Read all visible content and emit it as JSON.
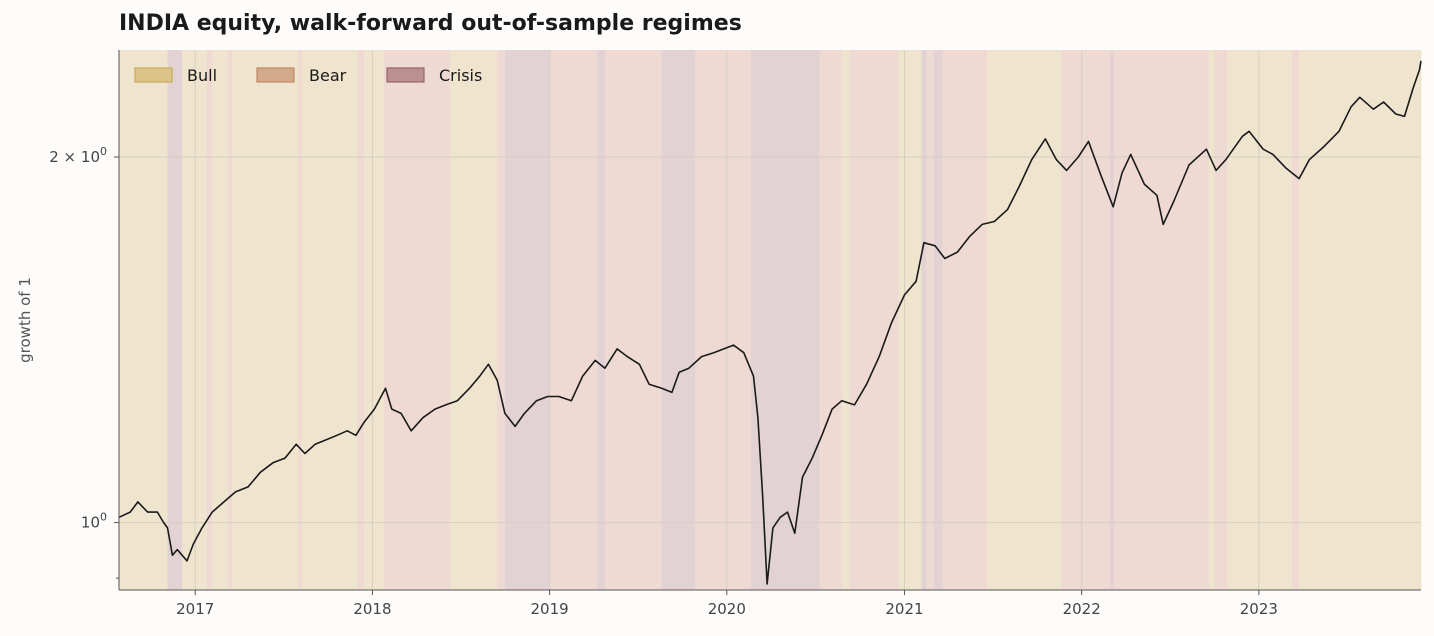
{
  "chart_data": {
    "type": "line",
    "title": "INDIA equity, walk-forward out-of-sample regimes",
    "ylabel": "growth of 1",
    "xlabel": "",
    "y_scale": "log",
    "xlim": [
      "2016-07-28",
      "2023-12-01"
    ],
    "ylim": [
      0.88,
      2.45
    ],
    "x_ticks": [
      "2017-01-01",
      "2018-01-01",
      "2019-01-01",
      "2020-01-01",
      "2021-01-01",
      "2022-01-01",
      "2023-01-01"
    ],
    "x_tick_labels": [
      "2017",
      "2018",
      "2019",
      "2020",
      "2021",
      "2022",
      "2023"
    ],
    "y_ticks": [
      {
        "value": 1.0,
        "base": "10",
        "exp": "0"
      },
      {
        "value": 2.0,
        "base": "2 × 10",
        "exp": "0"
      }
    ],
    "y_minor_ticks": [
      0.9
    ],
    "legend": {
      "placement": "top-left",
      "entries": [
        {
          "name": "Bull",
          "fill": "#dcc48a",
          "stroke": "#c9a95a"
        },
        {
          "name": "Bear",
          "fill": "#d2a98a",
          "stroke": "#c08a66"
        },
        {
          "name": "Crisis",
          "fill": "#b9918f",
          "stroke": "#9a6565"
        }
      ]
    },
    "regime_colors": {
      "Bull": "#efe5cf",
      "Bear": "#eedad3",
      "Crisis": "#e2d2d3"
    },
    "regimes": [
      {
        "start": "2016-07-28",
        "end": "2016-11-05",
        "regime": "Bull"
      },
      {
        "start": "2016-11-05",
        "end": "2016-12-05",
        "regime": "Crisis"
      },
      {
        "start": "2016-12-05",
        "end": "2017-01-01",
        "regime": "Bull"
      },
      {
        "start": "2017-01-01",
        "end": "2017-01-25",
        "regime": "Bull"
      },
      {
        "start": "2017-01-25",
        "end": "2017-02-05",
        "regime": "Bear"
      },
      {
        "start": "2017-02-05",
        "end": "2017-03-10",
        "regime": "Bull"
      },
      {
        "start": "2017-03-10",
        "end": "2017-03-18",
        "regime": "Bear"
      },
      {
        "start": "2017-03-18",
        "end": "2017-08-01",
        "regime": "Bull"
      },
      {
        "start": "2017-08-01",
        "end": "2017-08-08",
        "regime": "Bear"
      },
      {
        "start": "2017-08-08",
        "end": "2017-12-01",
        "regime": "Bull"
      },
      {
        "start": "2017-12-01",
        "end": "2017-12-15",
        "regime": "Bear"
      },
      {
        "start": "2017-12-15",
        "end": "2018-01-25",
        "regime": "Bull"
      },
      {
        "start": "2018-01-25",
        "end": "2018-06-10",
        "regime": "Bear"
      },
      {
        "start": "2018-06-10",
        "end": "2018-07-01",
        "regime": "Bull"
      },
      {
        "start": "2018-07-01",
        "end": "2018-09-15",
        "regime": "Bull"
      },
      {
        "start": "2018-09-15",
        "end": "2018-10-01",
        "regime": "Bear"
      },
      {
        "start": "2018-10-01",
        "end": "2019-01-01",
        "regime": "Crisis"
      },
      {
        "start": "2019-01-01",
        "end": "2019-04-10",
        "regime": "Bear"
      },
      {
        "start": "2019-04-10",
        "end": "2019-04-25",
        "regime": "Crisis"
      },
      {
        "start": "2019-04-25",
        "end": "2019-08-20",
        "regime": "Bear"
      },
      {
        "start": "2019-08-20",
        "end": "2019-10-28",
        "regime": "Crisis"
      },
      {
        "start": "2019-10-28",
        "end": "2020-02-20",
        "regime": "Bear"
      },
      {
        "start": "2020-02-20",
        "end": "2020-07-10",
        "regime": "Crisis"
      },
      {
        "start": "2020-07-10",
        "end": "2020-08-25",
        "regime": "Bear"
      },
      {
        "start": "2020-08-25",
        "end": "2020-09-10",
        "regime": "Bull"
      },
      {
        "start": "2020-09-10",
        "end": "2020-12-20",
        "regime": "Bear"
      },
      {
        "start": "2020-12-20",
        "end": "2021-02-05",
        "regime": "Bull"
      },
      {
        "start": "2021-02-05",
        "end": "2021-02-15",
        "regime": "Crisis"
      },
      {
        "start": "2021-02-15",
        "end": "2021-03-03",
        "regime": "Bear"
      },
      {
        "start": "2021-03-03",
        "end": "2021-03-20",
        "regime": "Crisis"
      },
      {
        "start": "2021-03-20",
        "end": "2021-06-20",
        "regime": "Bear"
      },
      {
        "start": "2021-06-20",
        "end": "2021-11-20",
        "regime": "Bull"
      },
      {
        "start": "2021-11-20",
        "end": "2022-03-01",
        "regime": "Bear"
      },
      {
        "start": "2022-03-01",
        "end": "2022-03-08",
        "regime": "Crisis"
      },
      {
        "start": "2022-03-08",
        "end": "2022-09-20",
        "regime": "Bear"
      },
      {
        "start": "2022-09-20",
        "end": "2022-10-01",
        "regime": "Bull"
      },
      {
        "start": "2022-10-01",
        "end": "2022-10-28",
        "regime": "Bear"
      },
      {
        "start": "2022-10-28",
        "end": "2023-03-10",
        "regime": "Bull"
      },
      {
        "start": "2023-03-10",
        "end": "2023-03-25",
        "regime": "Bear"
      },
      {
        "start": "2023-03-25",
        "end": "2023-12-01",
        "regime": "Bull"
      }
    ],
    "series": [
      {
        "color": "#1a1a1a",
        "points": [
          [
            "2016-07-28",
            1.01
          ],
          [
            "2016-08-20",
            1.02
          ],
          [
            "2016-09-05",
            1.04
          ],
          [
            "2016-09-25",
            1.02
          ],
          [
            "2016-10-15",
            1.02
          ],
          [
            "2016-10-28",
            1.0
          ],
          [
            "2016-11-05",
            0.99
          ],
          [
            "2016-11-15",
            0.94
          ],
          [
            "2016-11-25",
            0.95
          ],
          [
            "2016-12-05",
            0.94
          ],
          [
            "2016-12-15",
            0.93
          ],
          [
            "2016-12-28",
            0.96
          ],
          [
            "2017-01-15",
            0.99
          ],
          [
            "2017-02-05",
            1.02
          ],
          [
            "2017-03-01",
            1.04
          ],
          [
            "2017-03-25",
            1.06
          ],
          [
            "2017-04-20",
            1.07
          ],
          [
            "2017-05-15",
            1.1
          ],
          [
            "2017-06-10",
            1.12
          ],
          [
            "2017-07-05",
            1.13
          ],
          [
            "2017-07-28",
            1.16
          ],
          [
            "2017-08-15",
            1.14
          ],
          [
            "2017-09-05",
            1.16
          ],
          [
            "2017-09-28",
            1.17
          ],
          [
            "2017-10-20",
            1.18
          ],
          [
            "2017-11-10",
            1.19
          ],
          [
            "2017-11-28",
            1.18
          ],
          [
            "2017-12-15",
            1.21
          ],
          [
            "2018-01-05",
            1.24
          ],
          [
            "2018-01-28",
            1.29
          ],
          [
            "2018-02-10",
            1.24
          ],
          [
            "2018-03-01",
            1.23
          ],
          [
            "2018-03-22",
            1.19
          ],
          [
            "2018-04-15",
            1.22
          ],
          [
            "2018-05-10",
            1.24
          ],
          [
            "2018-06-01",
            1.25
          ],
          [
            "2018-06-25",
            1.26
          ],
          [
            "2018-07-20",
            1.29
          ],
          [
            "2018-08-10",
            1.32
          ],
          [
            "2018-08-28",
            1.35
          ],
          [
            "2018-09-15",
            1.31
          ],
          [
            "2018-10-01",
            1.23
          ],
          [
            "2018-10-22",
            1.2
          ],
          [
            "2018-11-10",
            1.23
          ],
          [
            "2018-12-05",
            1.26
          ],
          [
            "2018-12-28",
            1.27
          ],
          [
            "2019-01-20",
            1.27
          ],
          [
            "2019-02-15",
            1.26
          ],
          [
            "2019-03-10",
            1.32
          ],
          [
            "2019-04-05",
            1.36
          ],
          [
            "2019-04-25",
            1.34
          ],
          [
            "2019-05-20",
            1.39
          ],
          [
            "2019-06-10",
            1.37
          ],
          [
            "2019-07-05",
            1.35
          ],
          [
            "2019-07-25",
            1.3
          ],
          [
            "2019-08-20",
            1.29
          ],
          [
            "2019-09-10",
            1.28
          ],
          [
            "2019-09-25",
            1.33
          ],
          [
            "2019-10-15",
            1.34
          ],
          [
            "2019-11-10",
            1.37
          ],
          [
            "2019-12-05",
            1.38
          ],
          [
            "2020-01-15",
            1.4
          ],
          [
            "2020-02-05",
            1.38
          ],
          [
            "2020-02-25",
            1.32
          ],
          [
            "2020-03-05",
            1.22
          ],
          [
            "2020-03-15",
            1.05
          ],
          [
            "2020-03-24",
            0.89
          ],
          [
            "2020-04-05",
            0.99
          ],
          [
            "2020-04-20",
            1.01
          ],
          [
            "2020-05-05",
            1.02
          ],
          [
            "2020-05-20",
            0.98
          ],
          [
            "2020-06-05",
            1.09
          ],
          [
            "2020-06-25",
            1.13
          ],
          [
            "2020-07-15",
            1.18
          ],
          [
            "2020-08-05",
            1.24
          ],
          [
            "2020-08-25",
            1.26
          ],
          [
            "2020-09-20",
            1.25
          ],
          [
            "2020-10-15",
            1.3
          ],
          [
            "2020-11-10",
            1.37
          ],
          [
            "2020-12-05",
            1.46
          ],
          [
            "2021-01-01",
            1.54
          ],
          [
            "2021-01-25",
            1.58
          ],
          [
            "2021-02-10",
            1.7
          ],
          [
            "2021-03-05",
            1.69
          ],
          [
            "2021-03-25",
            1.65
          ],
          [
            "2021-04-20",
            1.67
          ],
          [
            "2021-05-15",
            1.72
          ],
          [
            "2021-06-10",
            1.76
          ],
          [
            "2021-07-05",
            1.77
          ],
          [
            "2021-08-01",
            1.81
          ],
          [
            "2021-08-25",
            1.89
          ],
          [
            "2021-09-20",
            1.99
          ],
          [
            "2021-10-18",
            2.07
          ],
          [
            "2021-11-10",
            1.99
          ],
          [
            "2021-12-01",
            1.95
          ],
          [
            "2021-12-25",
            2.0
          ],
          [
            "2022-01-15",
            2.06
          ],
          [
            "2022-02-10",
            1.93
          ],
          [
            "2022-03-07",
            1.82
          ],
          [
            "2022-03-25",
            1.94
          ],
          [
            "2022-04-12",
            2.01
          ],
          [
            "2022-05-10",
            1.9
          ],
          [
            "2022-06-05",
            1.86
          ],
          [
            "2022-06-18",
            1.76
          ],
          [
            "2022-07-10",
            1.84
          ],
          [
            "2022-08-10",
            1.97
          ],
          [
            "2022-09-15",
            2.03
          ],
          [
            "2022-10-05",
            1.95
          ],
          [
            "2022-10-25",
            1.99
          ],
          [
            "2022-11-28",
            2.08
          ],
          [
            "2022-12-12",
            2.1
          ],
          [
            "2023-01-10",
            2.03
          ],
          [
            "2023-01-30",
            2.01
          ],
          [
            "2023-02-25",
            1.96
          ],
          [
            "2023-03-25",
            1.92
          ],
          [
            "2023-04-15",
            1.99
          ],
          [
            "2023-05-15",
            2.04
          ],
          [
            "2023-06-15",
            2.1
          ],
          [
            "2023-07-10",
            2.2
          ],
          [
            "2023-07-28",
            2.24
          ],
          [
            "2023-08-25",
            2.19
          ],
          [
            "2023-09-15",
            2.22
          ],
          [
            "2023-10-10",
            2.17
          ],
          [
            "2023-10-28",
            2.16
          ],
          [
            "2023-11-15",
            2.28
          ],
          [
            "2023-11-28",
            2.36
          ],
          [
            "2023-12-01",
            2.4
          ]
        ]
      }
    ]
  }
}
